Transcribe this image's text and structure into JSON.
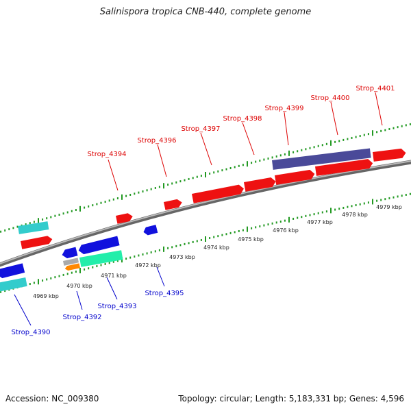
{
  "title": "Salinispora tropica CNB-440, complete genome",
  "accession": "Accession: NC_009380",
  "summary": "Topology: circular; Length: 5,183,331 bp; Genes: 4,596",
  "colors": {
    "forward_label": "#dd0000",
    "reverse_label": "#0000cc",
    "tick": "#229922",
    "backbone": "#888888"
  },
  "scale_labels": [
    {
      "text": "4969 kbp",
      "kbp": 4969
    },
    {
      "text": "4970 kbp",
      "kbp": 4970
    },
    {
      "text": "4971 kbp",
      "kbp": 4971
    },
    {
      "text": "4972 kbp",
      "kbp": 4972
    },
    {
      "text": "4973 kbp",
      "kbp": 4973
    },
    {
      "text": "4974 kbp",
      "kbp": 4974
    },
    {
      "text": "4975 kbp",
      "kbp": 4975
    },
    {
      "text": "4976 kbp",
      "kbp": 4976
    },
    {
      "text": "4977 kbp",
      "kbp": 4977
    },
    {
      "text": "4978 kbp",
      "kbp": 4978
    },
    {
      "text": "4979 kbp",
      "kbp": 4979
    }
  ],
  "forward_labels": [
    {
      "text": "Strop_4394"
    },
    {
      "text": "Strop_4396"
    },
    {
      "text": "Strop_4397"
    },
    {
      "text": "Strop_4398"
    },
    {
      "text": "Strop_4399"
    },
    {
      "text": "Strop_4400"
    },
    {
      "text": "Strop_4401"
    }
  ],
  "reverse_labels": [
    {
      "text": "Strop_4390"
    },
    {
      "text": "Strop_4392"
    },
    {
      "text": "Strop_4393"
    },
    {
      "text": "Strop_4395"
    }
  ]
}
